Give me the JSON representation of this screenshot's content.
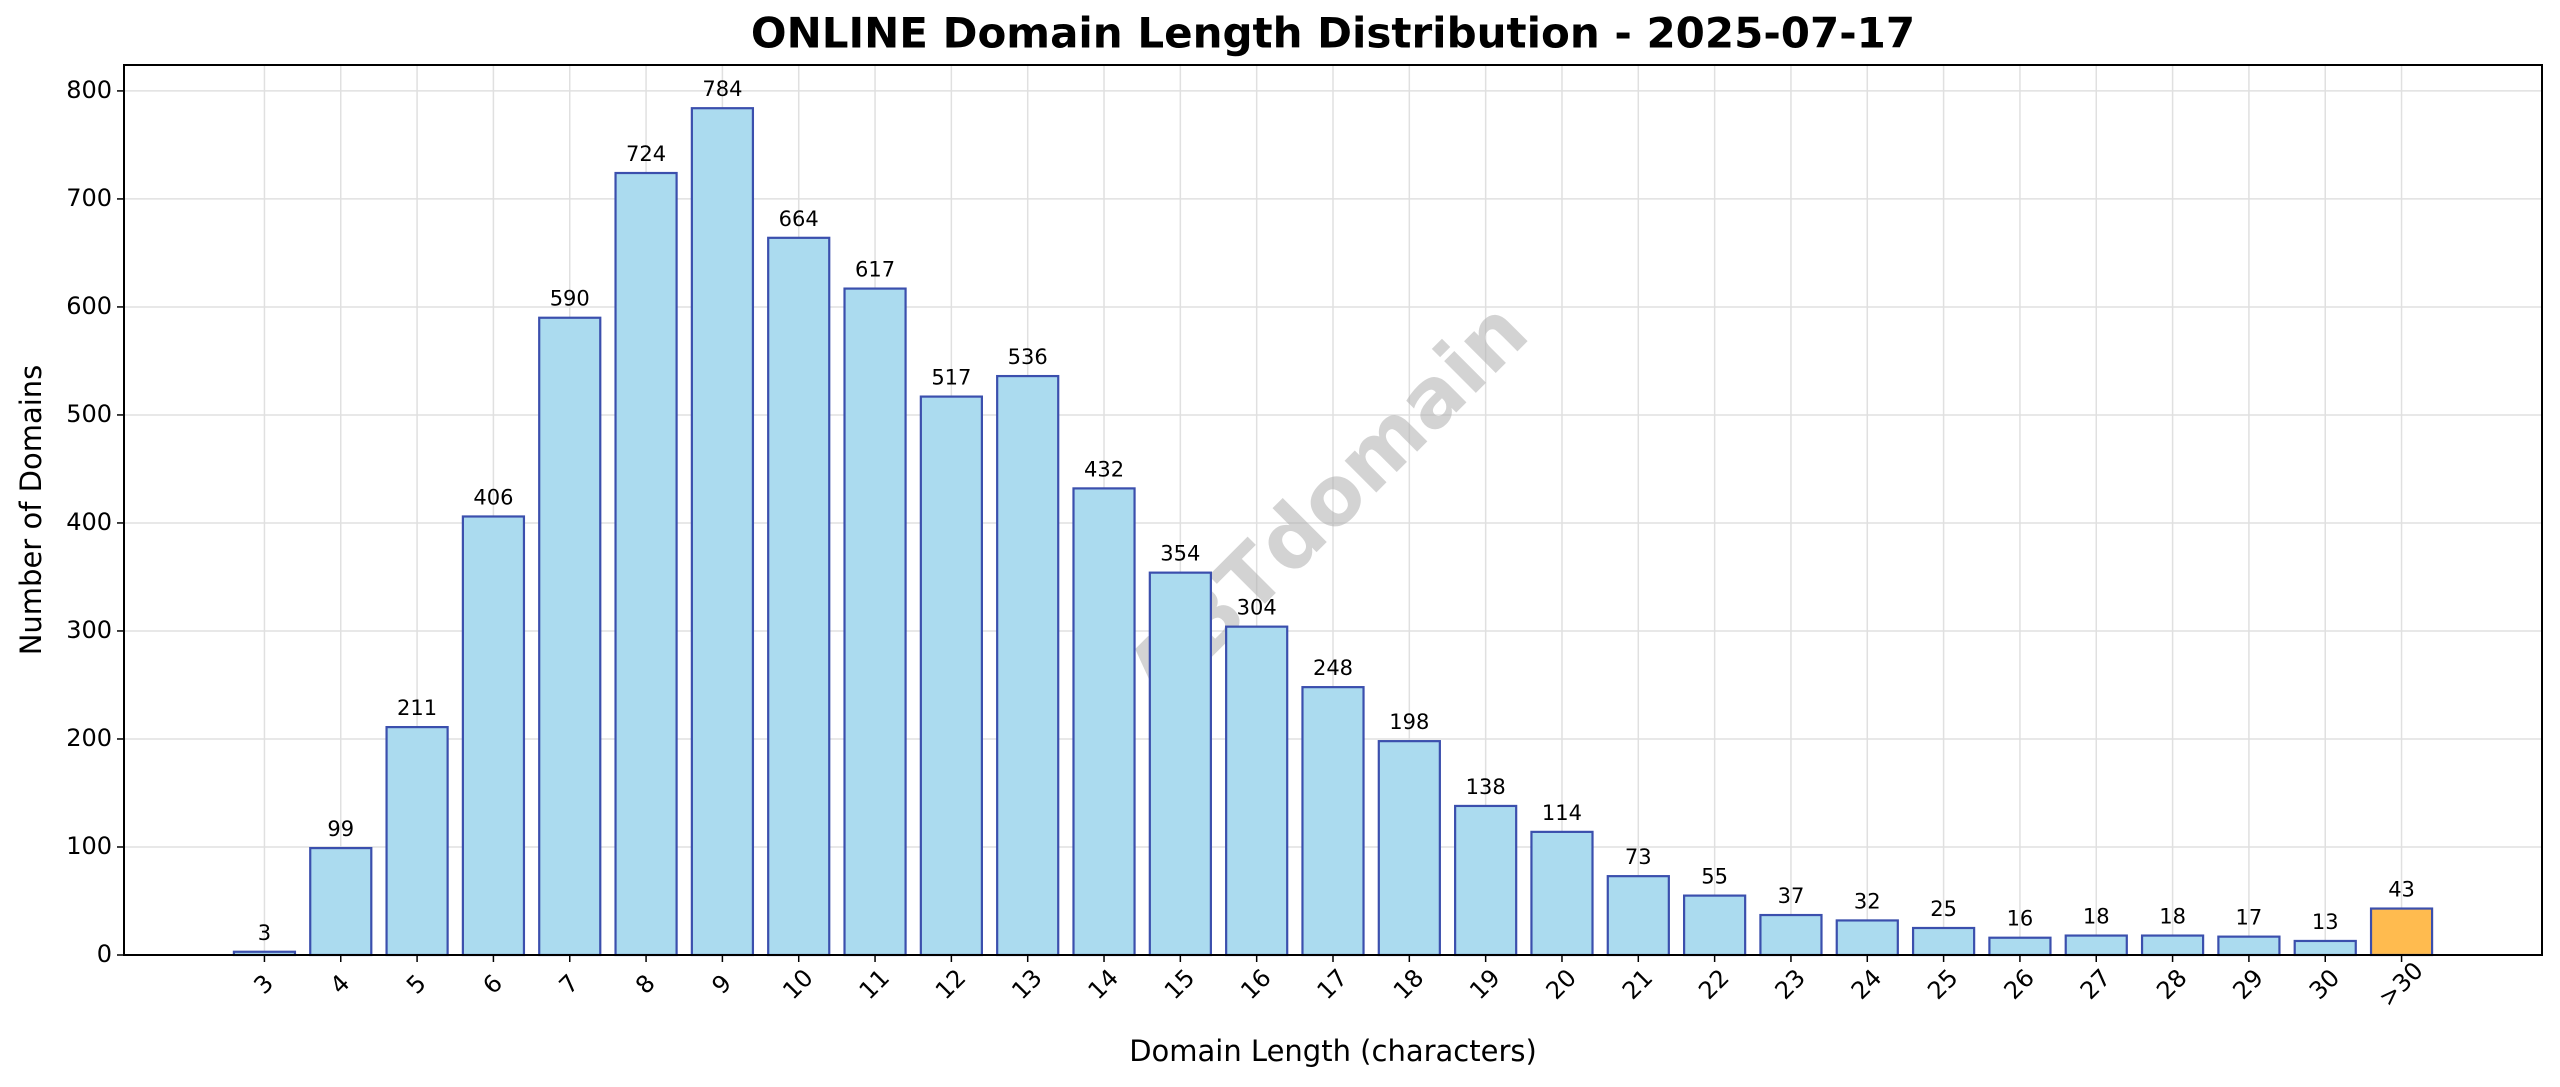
{
  "chart_data": {
    "type": "bar",
    "title": "ONLINE Domain Length Distribution - 2025-07-17",
    "xlabel": "Domain Length (characters)",
    "ylabel": "Number of Domains",
    "watermark": "ABTdomain",
    "categories": [
      "3",
      "4",
      "5",
      "6",
      "7",
      "8",
      "9",
      "10",
      "11",
      "12",
      "13",
      "14",
      "15",
      "16",
      "17",
      "18",
      "19",
      "20",
      "21",
      "22",
      "23",
      "24",
      "25",
      "26",
      "27",
      "28",
      "29",
      "30",
      ">30"
    ],
    "values": [
      3,
      99,
      211,
      406,
      590,
      724,
      784,
      664,
      617,
      517,
      536,
      432,
      354,
      304,
      248,
      198,
      138,
      114,
      73,
      55,
      37,
      32,
      25,
      16,
      18,
      18,
      17,
      13,
      43
    ],
    "colors": [
      "#abdbef",
      "#abdbef",
      "#abdbef",
      "#abdbef",
      "#abdbef",
      "#abdbef",
      "#abdbef",
      "#abdbef",
      "#abdbef",
      "#abdbef",
      "#abdbef",
      "#abdbef",
      "#abdbef",
      "#abdbef",
      "#abdbef",
      "#abdbef",
      "#abdbef",
      "#abdbef",
      "#abdbef",
      "#abdbef",
      "#abdbef",
      "#abdbef",
      "#abdbef",
      "#abdbef",
      "#abdbef",
      "#abdbef",
      "#abdbef",
      "#abdbef",
      "#ffbb4f"
    ],
    "edge_color": "#3b4fad",
    "ylim": [
      0,
      824
    ],
    "yticks": [
      0,
      100,
      200,
      300,
      400,
      500,
      600,
      700,
      800
    ],
    "grid": true
  }
}
